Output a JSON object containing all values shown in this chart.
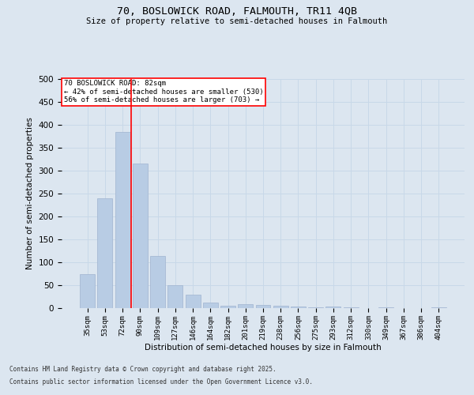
{
  "title_line1": "70, BOSLOWICK ROAD, FALMOUTH, TR11 4QB",
  "title_line2": "Size of property relative to semi-detached houses in Falmouth",
  "xlabel": "Distribution of semi-detached houses by size in Falmouth",
  "ylabel": "Number of semi-detached properties",
  "categories": [
    "35sqm",
    "53sqm",
    "72sqm",
    "90sqm",
    "109sqm",
    "127sqm",
    "146sqm",
    "164sqm",
    "182sqm",
    "201sqm",
    "219sqm",
    "238sqm",
    "256sqm",
    "275sqm",
    "293sqm",
    "312sqm",
    "330sqm",
    "349sqm",
    "367sqm",
    "386sqm",
    "404sqm"
  ],
  "values": [
    75,
    240,
    385,
    315,
    113,
    50,
    30,
    12,
    6,
    8,
    7,
    5,
    3,
    2,
    4,
    1,
    0,
    1,
    0,
    0,
    1
  ],
  "bar_color": "#b8cce4",
  "bar_edgecolor": "#a0b4d0",
  "grid_color": "#c8d8e8",
  "background_color": "#dce6f0",
  "vline_x_index": 2.5,
  "vline_color": "red",
  "annotation_title": "70 BOSLOWICK ROAD: 82sqm",
  "annotation_line1": "← 42% of semi-detached houses are smaller (530)",
  "annotation_line2": "56% of semi-detached houses are larger (703) →",
  "annotation_box_color": "white",
  "annotation_box_edgecolor": "red",
  "ylim": [
    0,
    500
  ],
  "yticks": [
    0,
    50,
    100,
    150,
    200,
    250,
    300,
    350,
    400,
    450,
    500
  ],
  "footer_line1": "Contains HM Land Registry data © Crown copyright and database right 2025.",
  "footer_line2": "Contains public sector information licensed under the Open Government Licence v3.0."
}
